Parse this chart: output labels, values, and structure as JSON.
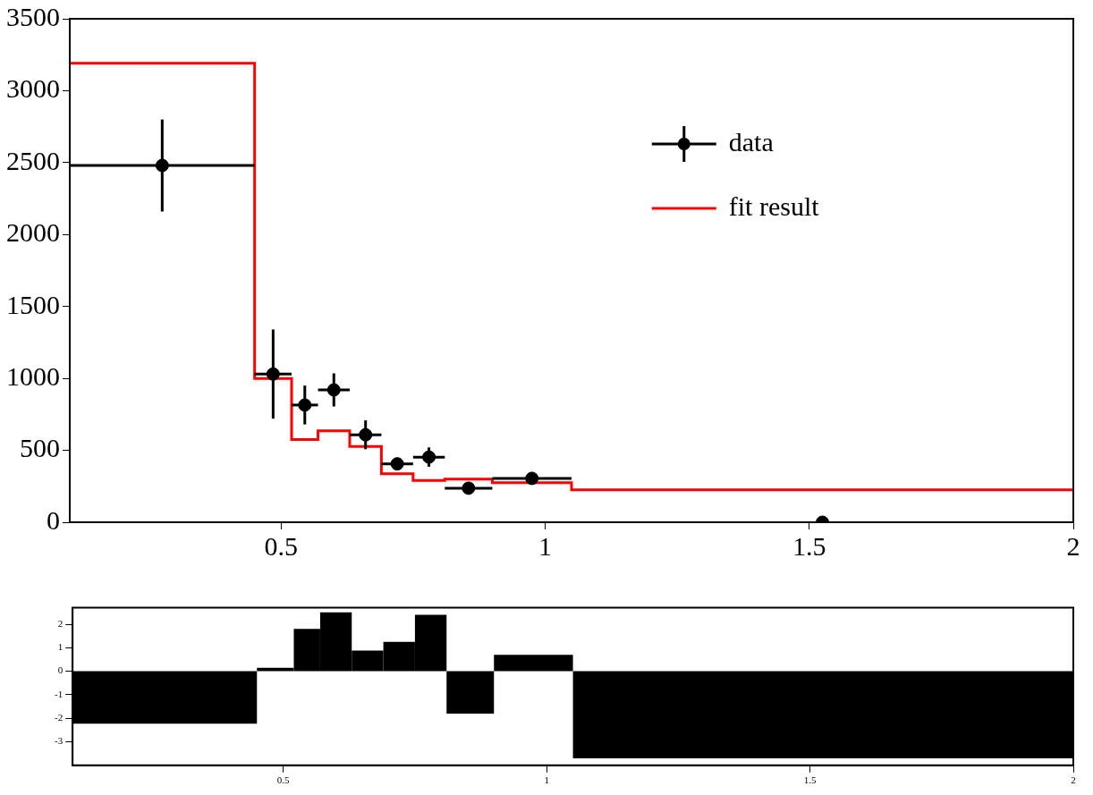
{
  "chart_data": [
    {
      "type": "scatter",
      "xlim": [
        0.1,
        2
      ],
      "xticks": [
        0.5,
        1,
        1.5,
        2
      ],
      "ylim": [
        0,
        3500
      ],
      "yticks": [
        0,
        500,
        1000,
        1500,
        2000,
        2500,
        3000,
        3500
      ],
      "legend": "top right",
      "series": [
        {
          "name": "data",
          "type": "scatter",
          "marker": "circle",
          "color": "#000000",
          "x": [
            0.275,
            0.485,
            0.545,
            0.6,
            0.66,
            0.72,
            0.78,
            0.855,
            0.975,
            1.525
          ],
          "values": [
            2480,
            1030,
            815,
            920,
            608,
            406,
            453,
            237,
            305,
            0
          ],
          "errors": [
            320,
            310,
            135,
            115,
            100,
            40,
            67,
            20,
            30,
            null
          ],
          "xerrors": [
            0.175,
            0.035,
            0.025,
            0.03,
            0.03,
            0.03,
            0.03,
            0.045,
            0.075,
            null
          ]
        },
        {
          "name": "fit result",
          "type": "step",
          "marker": "none",
          "color": "#ff0000",
          "x": [
            0.1,
            0.45,
            0.52,
            0.57,
            0.63,
            0.69,
            0.75,
            0.81,
            0.9,
            1.05,
            2
          ],
          "values": [
            3190,
            1000,
            575,
            635,
            527,
            338,
            290,
            300,
            275,
            225,
            225
          ]
        }
      ]
    },
    {
      "type": "histogram",
      "xlim": [
        0.1,
        2
      ],
      "xticks": [
        0.5,
        1,
        1.5,
        2
      ],
      "ylim": [
        -4,
        2.7
      ],
      "yticks": [
        -3,
        -2,
        -1,
        0,
        1,
        2
      ],
      "color": "#000000",
      "bins": [
        0.1,
        0.45,
        0.52,
        0.57,
        0.63,
        0.69,
        0.75,
        0.81,
        0.9,
        1.05,
        2
      ],
      "values": [
        -2.23,
        0.15,
        1.8,
        2.5,
        0.88,
        1.25,
        2.4,
        -1.8,
        0.7,
        -3.7
      ]
    }
  ]
}
